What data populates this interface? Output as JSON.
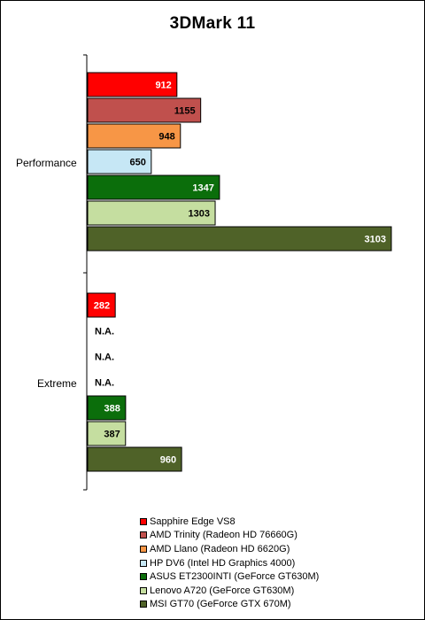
{
  "chart_data": {
    "type": "bar",
    "orientation": "horizontal",
    "title": "3DMark 11",
    "categories": [
      "Performance",
      "Extreme"
    ],
    "xlim": [
      0,
      3103
    ],
    "grid": false,
    "legend_position": "bottom",
    "series": [
      {
        "name": "Sapphire Edge VS8",
        "color": "#ff0000",
        "values": [
          912,
          282
        ],
        "labels": [
          "912",
          "282"
        ],
        "label_color": "#ffffff"
      },
      {
        "name": "AMD Trinity (Radeon HD 76660G)",
        "color": "#c0504d",
        "values": [
          1155,
          null
        ],
        "labels": [
          "1155",
          "N.A."
        ],
        "label_color": "#000000"
      },
      {
        "name": "AMD Llano (Radeon HD 6620G)",
        "color": "#f79646",
        "values": [
          948,
          null
        ],
        "labels": [
          "948",
          "N.A."
        ],
        "label_color": "#000000"
      },
      {
        "name": "HP DV6 (Intel HD Graphics 4000)",
        "color": "#c6e7f5",
        "values": [
          650,
          null
        ],
        "labels": [
          "650",
          "N.A."
        ],
        "label_color": "#000000"
      },
      {
        "name": "ASUS ET2300INTI (GeForce GT630M)",
        "color": "#0b6e0b",
        "values": [
          1347,
          388
        ],
        "labels": [
          "1347",
          "388"
        ],
        "label_color": "#ffffff"
      },
      {
        "name": "Lenovo A720 (GeForce GT630M)",
        "color": "#c5dea0",
        "values": [
          1303,
          387
        ],
        "labels": [
          "1303",
          "387"
        ],
        "label_color": "#000000"
      },
      {
        "name": "MSI GT70 (GeForce GTX 670M)",
        "color": "#4f6228",
        "values": [
          3103,
          960
        ],
        "labels": [
          "3103",
          "960"
        ],
        "label_color": "#ffffff"
      }
    ]
  }
}
